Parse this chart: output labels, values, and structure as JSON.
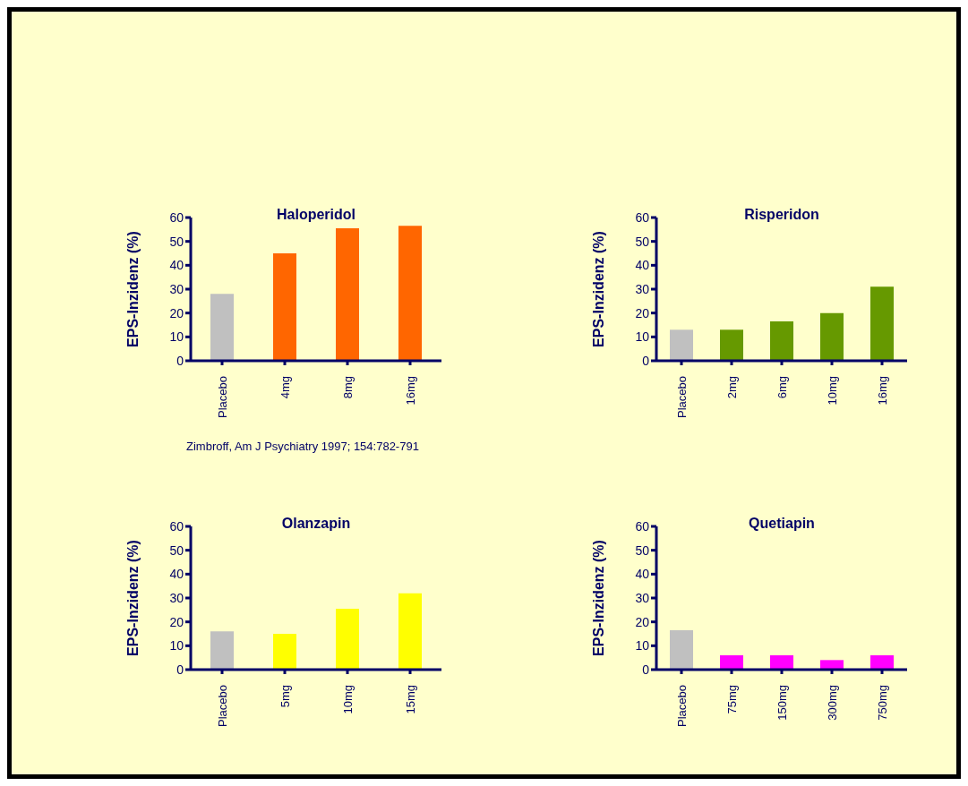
{
  "chart_data": [
    {
      "type": "bar",
      "title": "Haloperidol",
      "ylabel": "EPS-Inzidenz (%)",
      "categories": [
        "Placebo",
        "4mg",
        "8mg",
        "16mg"
      ],
      "values": [
        28,
        45,
        55.5,
        56.5
      ],
      "colors": [
        "#c0c0c0",
        "#ff6600",
        "#ff6600",
        "#ff6600"
      ],
      "ylim": [
        0,
        60
      ],
      "yticks": [
        0,
        10,
        20,
        30,
        40,
        50,
        60
      ],
      "grid": false,
      "legend": false,
      "annotations": [
        "Zimbroff, Am J Psychiatry 1997; 154:782-791"
      ]
    },
    {
      "type": "bar",
      "title": "Risperidon",
      "ylabel": "EPS-Inzidenz (%)",
      "categories": [
        "Placebo",
        "2mg",
        "6mg",
        "10mg",
        "16mg"
      ],
      "values": [
        13,
        13,
        16.5,
        20,
        31
      ],
      "colors": [
        "#c0c0c0",
        "#669900",
        "#669900",
        "#669900",
        "#669900"
      ],
      "ylim": [
        0,
        60
      ],
      "yticks": [
        0,
        10,
        20,
        30,
        40,
        50,
        60
      ],
      "grid": false,
      "legend": false
    },
    {
      "type": "bar",
      "title": "Olanzapin",
      "ylabel": "EPS-Inzidenz (%)",
      "categories": [
        "Placebo",
        "5mg",
        "10mg",
        "15mg"
      ],
      "values": [
        16,
        15,
        25.5,
        32
      ],
      "colors": [
        "#c0c0c0",
        "#ffff00",
        "#ffff00",
        "#ffff00"
      ],
      "ylim": [
        0,
        60
      ],
      "yticks": [
        0,
        10,
        20,
        30,
        40,
        50,
        60
      ],
      "grid": false,
      "legend": false
    },
    {
      "type": "bar",
      "title": "Quetiapin",
      "ylabel": "EPS-Inzidenz (%)",
      "categories": [
        "Placebo",
        "75mg",
        "150mg",
        "300mg",
        "750mg"
      ],
      "values": [
        16.5,
        6,
        6,
        4,
        6
      ],
      "colors": [
        "#c0c0c0",
        "#ff00ff",
        "#ff00ff",
        "#ff00ff",
        "#ff00ff"
      ],
      "ylim": [
        0,
        60
      ],
      "yticks": [
        0,
        10,
        20,
        30,
        40,
        50,
        60
      ],
      "grid": false,
      "legend": false
    }
  ]
}
